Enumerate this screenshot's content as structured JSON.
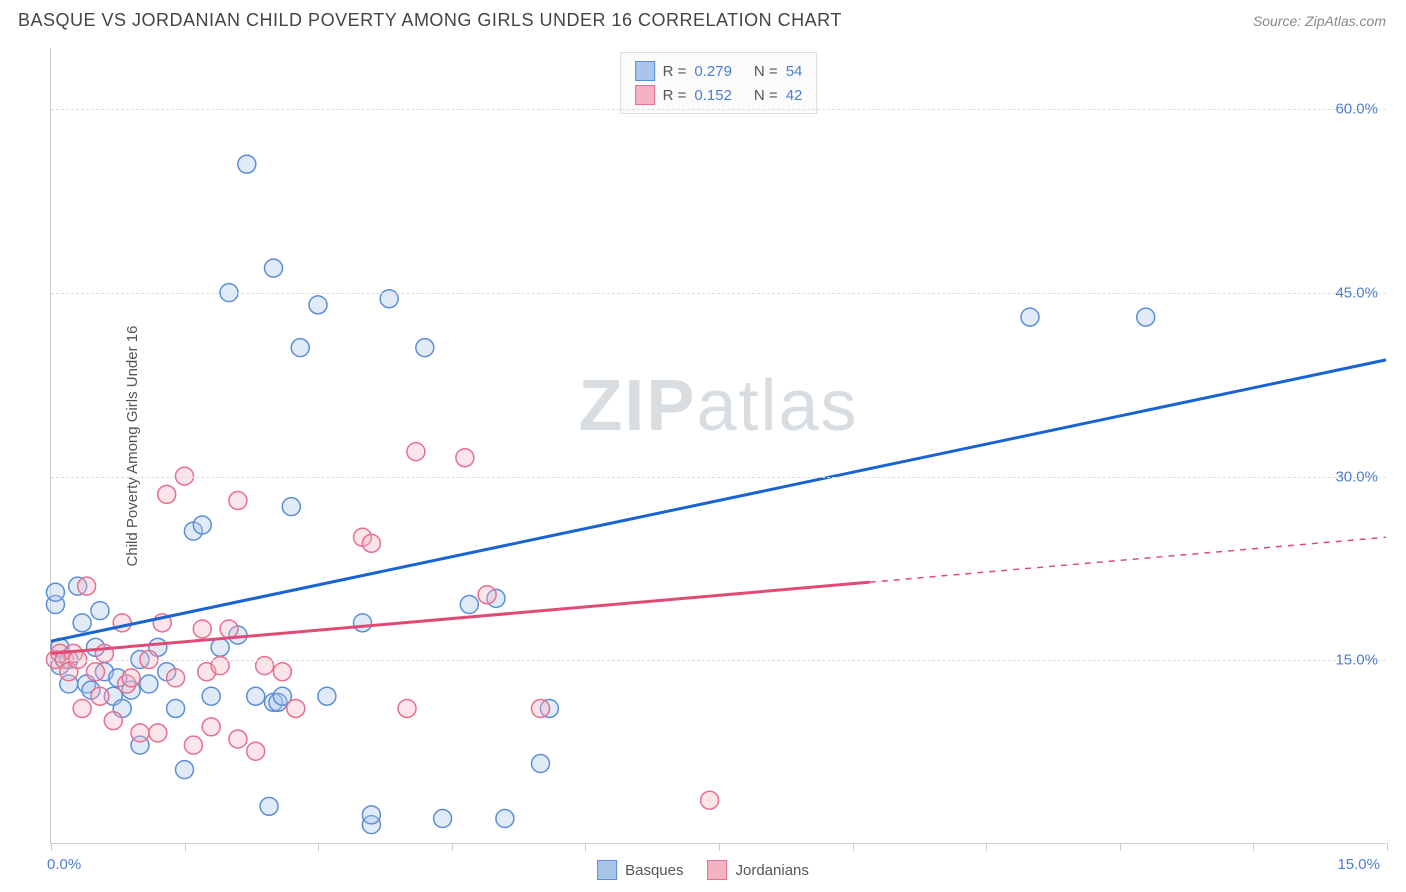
{
  "header": {
    "title": "BASQUE VS JORDANIAN CHILD POVERTY AMONG GIRLS UNDER 16 CORRELATION CHART",
    "source": "Source: ZipAtlas.com"
  },
  "chart": {
    "type": "scatter",
    "ylabel": "Child Poverty Among Girls Under 16",
    "xlim": [
      0,
      15
    ],
    "ylim": [
      0,
      65
    ],
    "x_ticks": [
      0,
      1.5,
      3.0,
      4.5,
      6.0,
      7.5,
      9.0,
      10.5,
      12.0,
      13.5,
      15.0
    ],
    "x_tick_labels_shown": [
      {
        "x": 0,
        "label": "0.0%"
      },
      {
        "x": 15,
        "label": "15.0%"
      }
    ],
    "y_gridlines": [
      15,
      30,
      45,
      60
    ],
    "y_tick_labels": [
      {
        "y": 15,
        "label": "15.0%"
      },
      {
        "y": 30,
        "label": "30.0%"
      },
      {
        "y": 45,
        "label": "45.0%"
      },
      {
        "y": 60,
        "label": "60.0%"
      }
    ],
    "background_color": "#ffffff",
    "grid_color": "#dddddd",
    "axis_color": "#cccccc",
    "tick_label_color": "#4a7fd6",
    "ylabel_color": "#555555",
    "marker_radius": 9,
    "marker_stroke_width": 1.5,
    "marker_fill_opacity": 0.35,
    "trend_line_width": 3,
    "series": [
      {
        "name": "Basques",
        "stroke_color": "#5b8ed6",
        "fill_color": "#a9c5ea",
        "line_color": "#1964d0",
        "R": "0.279",
        "N": "54",
        "trend": {
          "x1": 0,
          "y1": 16.5,
          "x2": 15,
          "y2": 39.5,
          "dash_from_x": null
        },
        "points": [
          [
            0.05,
            19.5
          ],
          [
            0.05,
            20.5
          ],
          [
            0.1,
            16
          ],
          [
            0.1,
            14.5
          ],
          [
            0.2,
            15
          ],
          [
            0.2,
            13
          ],
          [
            0.3,
            21
          ],
          [
            0.35,
            18
          ],
          [
            0.4,
            13
          ],
          [
            0.45,
            12.5
          ],
          [
            0.5,
            16
          ],
          [
            0.55,
            19
          ],
          [
            0.6,
            14
          ],
          [
            0.7,
            12
          ],
          [
            0.75,
            13.5
          ],
          [
            0.8,
            11
          ],
          [
            0.9,
            12.5
          ],
          [
            1.0,
            8
          ],
          [
            1.0,
            15
          ],
          [
            1.1,
            13
          ],
          [
            1.2,
            16
          ],
          [
            1.3,
            14
          ],
          [
            1.4,
            11
          ],
          [
            1.5,
            6
          ],
          [
            1.6,
            25.5
          ],
          [
            1.7,
            26
          ],
          [
            1.8,
            12
          ],
          [
            1.9,
            16
          ],
          [
            2.0,
            45
          ],
          [
            2.1,
            17
          ],
          [
            2.2,
            55.5
          ],
          [
            2.3,
            12
          ],
          [
            2.45,
            3
          ],
          [
            2.5,
            47
          ],
          [
            2.5,
            11.5
          ],
          [
            2.55,
            11.5
          ],
          [
            2.6,
            12
          ],
          [
            2.7,
            27.5
          ],
          [
            2.8,
            40.5
          ],
          [
            3.0,
            44
          ],
          [
            3.1,
            12
          ],
          [
            3.5,
            18
          ],
          [
            3.6,
            1.5
          ],
          [
            3.6,
            2.3
          ],
          [
            3.8,
            44.5
          ],
          [
            4.2,
            40.5
          ],
          [
            4.4,
            2
          ],
          [
            4.7,
            19.5
          ],
          [
            5.0,
            20
          ],
          [
            5.1,
            2
          ],
          [
            5.5,
            6.5
          ],
          [
            5.6,
            11
          ],
          [
            11.0,
            43
          ],
          [
            12.3,
            43
          ]
        ]
      },
      {
        "name": "Jordanians",
        "stroke_color": "#e76f8f",
        "fill_color": "#f3b3c3",
        "line_color": "#e04a74",
        "R": "0.152",
        "N": "42",
        "trend": {
          "x1": 0,
          "y1": 15.5,
          "x2": 15,
          "y2": 25,
          "dash_from_x": 9.2
        },
        "points": [
          [
            0.05,
            15
          ],
          [
            0.1,
            15.5
          ],
          [
            0.15,
            15
          ],
          [
            0.2,
            14
          ],
          [
            0.25,
            15.5
          ],
          [
            0.3,
            15
          ],
          [
            0.35,
            11
          ],
          [
            0.4,
            21
          ],
          [
            0.5,
            14
          ],
          [
            0.55,
            12
          ],
          [
            0.6,
            15.5
          ],
          [
            0.7,
            10
          ],
          [
            0.8,
            18
          ],
          [
            0.85,
            13
          ],
          [
            0.9,
            13.5
          ],
          [
            1.0,
            9
          ],
          [
            1.1,
            15
          ],
          [
            1.2,
            9
          ],
          [
            1.25,
            18
          ],
          [
            1.3,
            28.5
          ],
          [
            1.4,
            13.5
          ],
          [
            1.5,
            30
          ],
          [
            1.6,
            8
          ],
          [
            1.7,
            17.5
          ],
          [
            1.75,
            14
          ],
          [
            1.8,
            9.5
          ],
          [
            1.9,
            14.5
          ],
          [
            2.0,
            17.5
          ],
          [
            2.1,
            8.5
          ],
          [
            2.1,
            28
          ],
          [
            2.3,
            7.5
          ],
          [
            2.4,
            14.5
          ],
          [
            2.6,
            14
          ],
          [
            2.75,
            11
          ],
          [
            3.5,
            25
          ],
          [
            3.6,
            24.5
          ],
          [
            4.0,
            11
          ],
          [
            4.1,
            32
          ],
          [
            4.65,
            31.5
          ],
          [
            4.9,
            20.3
          ],
          [
            5.5,
            11
          ],
          [
            7.4,
            3.5
          ]
        ]
      }
    ]
  },
  "watermark": {
    "bold": "ZIP",
    "light": "atlas"
  },
  "legend_bottom": [
    {
      "label": "Basques",
      "stroke": "#5b8ed6",
      "fill": "#a9c5ea"
    },
    {
      "label": "Jordanians",
      "stroke": "#e76f8f",
      "fill": "#f3b3c3"
    }
  ]
}
